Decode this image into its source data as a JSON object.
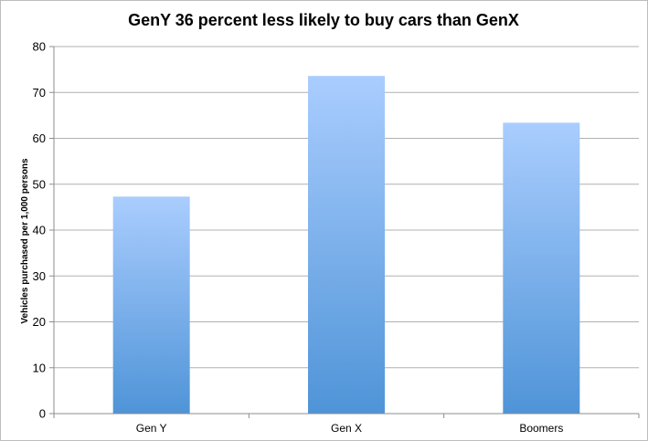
{
  "chart_data": {
    "type": "bar",
    "title": "GenY 36 percent less likely to buy cars than GenX",
    "xlabel": "",
    "ylabel": "Vehicles purchased per 1,000 persons",
    "categories": [
      "Gen Y",
      "Gen X",
      "Boomers"
    ],
    "values": [
      47.3,
      73.6,
      63.4
    ],
    "ylim": [
      0,
      80
    ],
    "yticks": [
      "0",
      "10",
      "20",
      "30",
      "40",
      "50",
      "60",
      "70",
      "80"
    ],
    "grid": true,
    "legend": "none",
    "bar_gradient": {
      "top": "#aacdfe",
      "bottom": "#4f94d8"
    },
    "grid_color": "#b0b0b0",
    "axis_color": "#8c8c8c"
  }
}
